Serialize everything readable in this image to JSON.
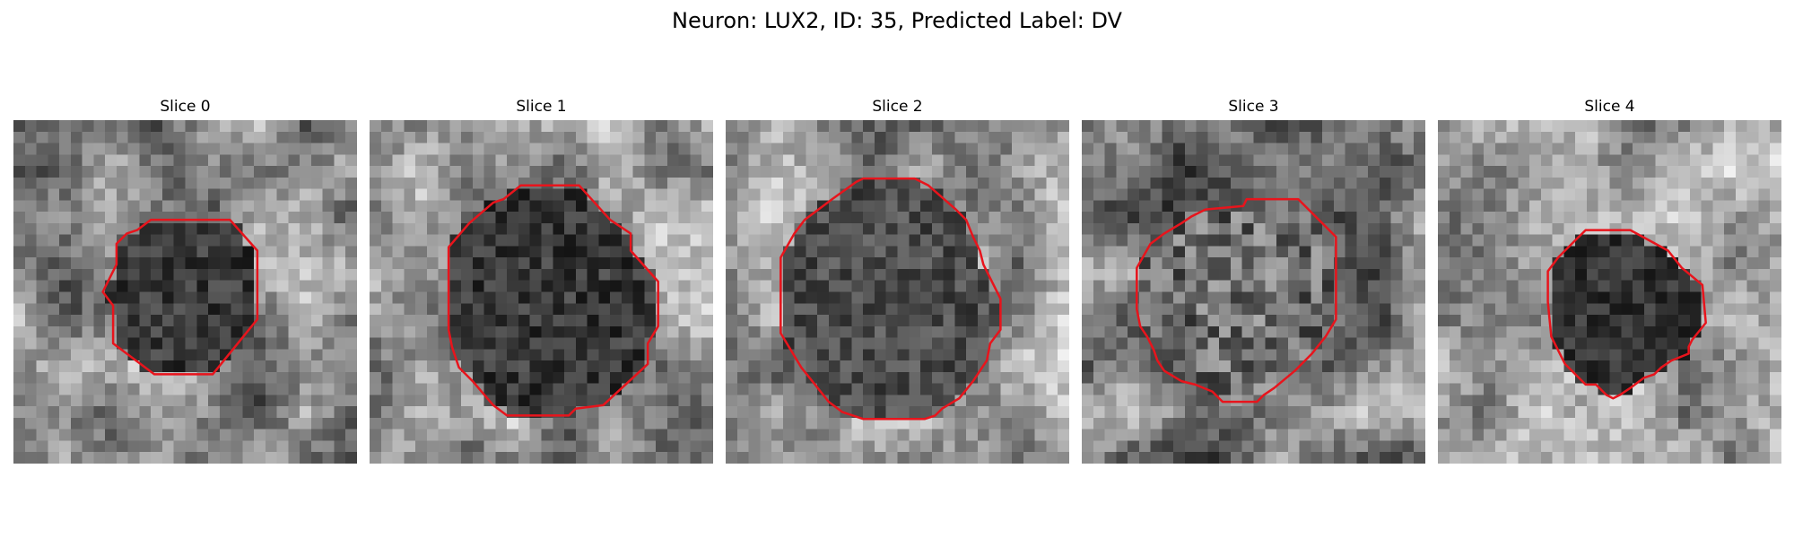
{
  "figure": {
    "title": "Neuron: LUX2, ID: 35, Predicted Label: DV"
  },
  "contour_color": "#e8141c",
  "panels": [
    {
      "title": "Slice 0",
      "seed": 11,
      "contour": [
        [
          0.4,
          0.29
        ],
        [
          0.63,
          0.29
        ],
        [
          0.71,
          0.38
        ],
        [
          0.71,
          0.58
        ],
        [
          0.58,
          0.74
        ],
        [
          0.41,
          0.74
        ],
        [
          0.29,
          0.65
        ],
        [
          0.29,
          0.54
        ],
        [
          0.26,
          0.5
        ],
        [
          0.3,
          0.42
        ],
        [
          0.3,
          0.36
        ],
        [
          0.33,
          0.33
        ],
        [
          0.36,
          0.32
        ]
      ],
      "bg_tone": [
        0.55,
        0.35
      ],
      "inner_tone": [
        0.22,
        0.18
      ]
    },
    {
      "title": "Slice 1",
      "seed": 23,
      "contour": [
        [
          0.44,
          0.19
        ],
        [
          0.61,
          0.19
        ],
        [
          0.7,
          0.29
        ],
        [
          0.76,
          0.33
        ],
        [
          0.76,
          0.38
        ],
        [
          0.84,
          0.47
        ],
        [
          0.84,
          0.6
        ],
        [
          0.81,
          0.65
        ],
        [
          0.81,
          0.71
        ],
        [
          0.68,
          0.83
        ],
        [
          0.6,
          0.84
        ],
        [
          0.58,
          0.86
        ],
        [
          0.4,
          0.86
        ],
        [
          0.36,
          0.83
        ],
        [
          0.3,
          0.76
        ],
        [
          0.26,
          0.72
        ],
        [
          0.24,
          0.66
        ],
        [
          0.23,
          0.61
        ],
        [
          0.23,
          0.37
        ],
        [
          0.29,
          0.3
        ],
        [
          0.36,
          0.24
        ],
        [
          0.39,
          0.23
        ]
      ],
      "bg_tone": [
        0.6,
        0.35
      ],
      "inner_tone": [
        0.22,
        0.18
      ]
    },
    {
      "title": "Slice 2",
      "seed": 37,
      "contour": [
        [
          0.38,
          0.18
        ],
        [
          0.4,
          0.17
        ],
        [
          0.55,
          0.17
        ],
        [
          0.59,
          0.19
        ],
        [
          0.67,
          0.26
        ],
        [
          0.7,
          0.29
        ],
        [
          0.72,
          0.34
        ],
        [
          0.74,
          0.38
        ],
        [
          0.75,
          0.42
        ],
        [
          0.77,
          0.46
        ],
        [
          0.8,
          0.52
        ],
        [
          0.8,
          0.61
        ],
        [
          0.77,
          0.65
        ],
        [
          0.76,
          0.7
        ],
        [
          0.72,
          0.76
        ],
        [
          0.68,
          0.81
        ],
        [
          0.63,
          0.84
        ],
        [
          0.61,
          0.86
        ],
        [
          0.58,
          0.87
        ],
        [
          0.4,
          0.87
        ],
        [
          0.34,
          0.85
        ],
        [
          0.3,
          0.82
        ],
        [
          0.26,
          0.77
        ],
        [
          0.22,
          0.72
        ],
        [
          0.19,
          0.67
        ],
        [
          0.16,
          0.62
        ],
        [
          0.16,
          0.4
        ],
        [
          0.2,
          0.33
        ],
        [
          0.23,
          0.29
        ],
        [
          0.31,
          0.23
        ]
      ],
      "bg_tone": [
        0.62,
        0.35
      ],
      "inner_tone": [
        0.3,
        0.18
      ]
    },
    {
      "title": "Slice 3",
      "seed": 49,
      "contour": [
        [
          0.36,
          0.26
        ],
        [
          0.47,
          0.25
        ],
        [
          0.48,
          0.23
        ],
        [
          0.63,
          0.23
        ],
        [
          0.74,
          0.34
        ],
        [
          0.74,
          0.58
        ],
        [
          0.71,
          0.63
        ],
        [
          0.67,
          0.68
        ],
        [
          0.62,
          0.73
        ],
        [
          0.56,
          0.78
        ],
        [
          0.53,
          0.8
        ],
        [
          0.51,
          0.82
        ],
        [
          0.41,
          0.82
        ],
        [
          0.38,
          0.79
        ],
        [
          0.33,
          0.77
        ],
        [
          0.29,
          0.76
        ],
        [
          0.24,
          0.73
        ],
        [
          0.22,
          0.7
        ],
        [
          0.21,
          0.67
        ],
        [
          0.19,
          0.63
        ],
        [
          0.17,
          0.6
        ],
        [
          0.16,
          0.55
        ],
        [
          0.16,
          0.43
        ],
        [
          0.2,
          0.36
        ],
        [
          0.24,
          0.33
        ],
        [
          0.29,
          0.3
        ],
        [
          0.32,
          0.28
        ]
      ],
      "bg_tone": [
        0.52,
        0.4
      ],
      "inner_tone": [
        0.42,
        0.32
      ]
    },
    {
      "title": "Slice 4",
      "seed": 61,
      "contour": [
        [
          0.43,
          0.32
        ],
        [
          0.56,
          0.32
        ],
        [
          0.67,
          0.38
        ],
        [
          0.71,
          0.43
        ],
        [
          0.77,
          0.48
        ],
        [
          0.78,
          0.59
        ],
        [
          0.74,
          0.64
        ],
        [
          0.73,
          0.66
        ],
        [
          0.73,
          0.68
        ],
        [
          0.68,
          0.7
        ],
        [
          0.65,
          0.72
        ],
        [
          0.63,
          0.74
        ],
        [
          0.6,
          0.75
        ],
        [
          0.56,
          0.78
        ],
        [
          0.53,
          0.8
        ],
        [
          0.51,
          0.81
        ],
        [
          0.49,
          0.8
        ],
        [
          0.46,
          0.77
        ],
        [
          0.43,
          0.77
        ],
        [
          0.4,
          0.74
        ],
        [
          0.37,
          0.71
        ],
        [
          0.35,
          0.67
        ],
        [
          0.33,
          0.63
        ],
        [
          0.32,
          0.53
        ],
        [
          0.32,
          0.44
        ],
        [
          0.35,
          0.4
        ],
        [
          0.4,
          0.35
        ]
      ],
      "bg_tone": [
        0.62,
        0.3
      ],
      "inner_tone": [
        0.2,
        0.15
      ]
    }
  ]
}
